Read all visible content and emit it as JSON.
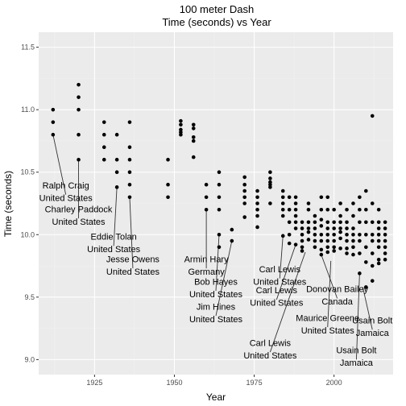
{
  "chart_data": {
    "type": "scatter",
    "title": "100 meter Dash",
    "subtitle": "Time (seconds) vs Year",
    "xlabel": "Year",
    "ylabel": "Time (seconds)",
    "xlim": [
      1907.5,
      2018.5
    ],
    "ylim": [
      8.88,
      11.62
    ],
    "xticks": [
      1925,
      1950,
      1975,
      2000
    ],
    "xtick_labels": [
      "1925",
      "1950",
      "1975",
      "2000"
    ],
    "yticks": [
      9.0,
      9.5,
      10.0,
      10.5,
      11.0,
      11.5
    ],
    "ytick_labels": [
      "9.0",
      "9.5",
      "10.0",
      "10.5",
      "11.0",
      "11.5"
    ],
    "grid": true,
    "points": [
      [
        1912,
        11.0
      ],
      [
        1912,
        10.9
      ],
      [
        1912,
        10.8
      ],
      [
        1920,
        11.2
      ],
      [
        1920,
        11.1
      ],
      [
        1920,
        11.0
      ],
      [
        1920,
        10.8
      ],
      [
        1920,
        10.6
      ],
      [
        1928,
        10.9
      ],
      [
        1928,
        10.8
      ],
      [
        1928,
        10.7
      ],
      [
        1928,
        10.6
      ],
      [
        1932,
        10.8
      ],
      [
        1932,
        10.6
      ],
      [
        1932,
        10.5
      ],
      [
        1932,
        10.38
      ],
      [
        1936,
        10.9
      ],
      [
        1936,
        10.7
      ],
      [
        1936,
        10.6
      ],
      [
        1936,
        10.5
      ],
      [
        1936,
        10.4
      ],
      [
        1936,
        10.3
      ],
      [
        1948,
        10.6
      ],
      [
        1948,
        10.4
      ],
      [
        1948,
        10.3
      ],
      [
        1952,
        10.91
      ],
      [
        1952,
        10.88
      ],
      [
        1952,
        10.84
      ],
      [
        1952,
        10.82
      ],
      [
        1952,
        10.8
      ],
      [
        1956,
        10.88
      ],
      [
        1956,
        10.85
      ],
      [
        1956,
        10.78
      ],
      [
        1956,
        10.75
      ],
      [
        1956,
        10.62
      ],
      [
        1960,
        10.4
      ],
      [
        1960,
        10.3
      ],
      [
        1960,
        10.2
      ],
      [
        1964,
        10.5
      ],
      [
        1964,
        10.4
      ],
      [
        1964,
        10.3
      ],
      [
        1964,
        10.2
      ],
      [
        1964,
        10.0
      ],
      [
        1964,
        9.9
      ],
      [
        1968,
        10.04
      ],
      [
        1968,
        9.95
      ],
      [
        1972,
        10.46
      ],
      [
        1972,
        10.4
      ],
      [
        1972,
        10.35
      ],
      [
        1972,
        10.3
      ],
      [
        1972,
        10.25
      ],
      [
        1972,
        10.14
      ],
      [
        1976,
        10.35
      ],
      [
        1976,
        10.3
      ],
      [
        1976,
        10.25
      ],
      [
        1976,
        10.2
      ],
      [
        1976,
        10.15
      ],
      [
        1976,
        10.06
      ],
      [
        1980,
        10.5
      ],
      [
        1980,
        10.45
      ],
      [
        1980,
        10.42
      ],
      [
        1980,
        10.4
      ],
      [
        1980,
        10.38
      ],
      [
        1980,
        10.25
      ],
      [
        1984,
        10.35
      ],
      [
        1984,
        10.3
      ],
      [
        1984,
        10.25
      ],
      [
        1984,
        10.2
      ],
      [
        1984,
        10.15
      ],
      [
        1984,
        9.99
      ],
      [
        1986,
        10.3
      ],
      [
        1986,
        10.2
      ],
      [
        1986,
        10.1
      ],
      [
        1986,
        10.0
      ],
      [
        1986,
        9.93
      ],
      [
        1988,
        10.3
      ],
      [
        1988,
        10.25
      ],
      [
        1988,
        10.2
      ],
      [
        1988,
        10.15
      ],
      [
        1988,
        10.1
      ],
      [
        1988,
        10.05
      ],
      [
        1988,
        9.92
      ],
      [
        1990,
        10.1
      ],
      [
        1990,
        10.05
      ],
      [
        1990,
        10.0
      ],
      [
        1990,
        9.95
      ],
      [
        1990,
        9.9
      ],
      [
        1990,
        9.87
      ],
      [
        1992,
        10.25
      ],
      [
        1992,
        10.2
      ],
      [
        1992,
        10.1
      ],
      [
        1992,
        10.05
      ],
      [
        1992,
        10.02
      ],
      [
        1992,
        9.96
      ],
      [
        1994,
        10.15
      ],
      [
        1994,
        10.1
      ],
      [
        1994,
        10.05
      ],
      [
        1994,
        10.0
      ],
      [
        1994,
        9.95
      ],
      [
        1994,
        9.9
      ],
      [
        1996,
        10.3
      ],
      [
        1996,
        10.2
      ],
      [
        1996,
        10.12
      ],
      [
        1996,
        10.07
      ],
      [
        1996,
        10.0
      ],
      [
        1996,
        9.95
      ],
      [
        1996,
        9.88
      ],
      [
        1996,
        9.84
      ],
      [
        1998,
        10.3
      ],
      [
        1998,
        10.2
      ],
      [
        1998,
        10.1
      ],
      [
        1998,
        10.05
      ],
      [
        1998,
        10.0
      ],
      [
        1998,
        9.95
      ],
      [
        1998,
        9.9
      ],
      [
        1998,
        9.86
      ],
      [
        2000,
        10.2
      ],
      [
        2000,
        10.1
      ],
      [
        2000,
        10.05
      ],
      [
        2000,
        10.0
      ],
      [
        2000,
        9.95
      ],
      [
        2000,
        9.9
      ],
      [
        2000,
        9.87
      ],
      [
        2002,
        10.25
      ],
      [
        2002,
        10.15
      ],
      [
        2002,
        10.1
      ],
      [
        2002,
        10.05
      ],
      [
        2002,
        10.02
      ],
      [
        2002,
        9.97
      ],
      [
        2002,
        9.89
      ],
      [
        2004,
        10.2
      ],
      [
        2004,
        10.1
      ],
      [
        2004,
        10.05
      ],
      [
        2004,
        10.0
      ],
      [
        2004,
        9.95
      ],
      [
        2004,
        9.89
      ],
      [
        2004,
        9.85
      ],
      [
        2006,
        10.25
      ],
      [
        2006,
        10.15
      ],
      [
        2006,
        10.05
      ],
      [
        2006,
        10.0
      ],
      [
        2006,
        9.95
      ],
      [
        2006,
        9.9
      ],
      [
        2006,
        9.84
      ],
      [
        2008,
        10.3
      ],
      [
        2008,
        10.2
      ],
      [
        2008,
        10.1
      ],
      [
        2008,
        10.0
      ],
      [
        2008,
        9.95
      ],
      [
        2008,
        9.85
      ],
      [
        2008,
        9.69
      ],
      [
        2010,
        10.35
      ],
      [
        2010,
        10.2
      ],
      [
        2010,
        10.1
      ],
      [
        2010,
        10.0
      ],
      [
        2010,
        9.9
      ],
      [
        2010,
        9.78
      ],
      [
        2010,
        9.58
      ],
      [
        2012,
        10.95
      ],
      [
        2012,
        10.25
      ],
      [
        2012,
        10.1
      ],
      [
        2012,
        10.0
      ],
      [
        2012,
        9.95
      ],
      [
        2012,
        9.85
      ],
      [
        2012,
        9.75
      ],
      [
        2012,
        9.63
      ],
      [
        2014,
        10.2
      ],
      [
        2014,
        10.1
      ],
      [
        2014,
        10.05
      ],
      [
        2014,
        10.0
      ],
      [
        2014,
        9.95
      ],
      [
        2014,
        9.9
      ],
      [
        2014,
        9.8
      ],
      [
        2014,
        9.77
      ],
      [
        2016,
        10.1
      ],
      [
        2016,
        10.05
      ],
      [
        2016,
        10.0
      ],
      [
        2016,
        9.95
      ],
      [
        2016,
        9.9
      ],
      [
        2016,
        9.85
      ],
      [
        2016,
        9.8
      ]
    ],
    "annotations": [
      {
        "name": "Ralph Craig",
        "country": "United States",
        "point": [
          1912,
          10.8
        ],
        "label_x": 1916,
        "label_y": 10.37
      },
      {
        "name": "Charley Paddock",
        "country": "United States",
        "point": [
          1920,
          10.6
        ],
        "label_x": 1920,
        "label_y": 10.18
      },
      {
        "name": "Eddie Tolan",
        "country": "United States",
        "point": [
          1932,
          10.38
        ],
        "label_x": 1931,
        "label_y": 9.96
      },
      {
        "name": "Jesse Owens",
        "country": "United States",
        "point": [
          1936,
          10.3
        ],
        "label_x": 1937,
        "label_y": 9.78
      },
      {
        "name": "Armin Hary",
        "country": "Germany",
        "point": [
          1960,
          10.2
        ],
        "label_x": 1960,
        "label_y": 9.78
      },
      {
        "name": "Bob Hayes",
        "country": "United States",
        "point": [
          1964,
          10.0
        ],
        "label_x": 1963,
        "label_y": 9.6
      },
      {
        "name": "Jim Hines",
        "country": "United States",
        "point": [
          1968,
          9.95
        ],
        "label_x": 1963,
        "label_y": 9.4
      },
      {
        "name": "Carl Lewis",
        "country": "United States",
        "point": [
          1984,
          9.99
        ],
        "label_x": 1983,
        "label_y": 9.7
      },
      {
        "name": "Carl Lewis",
        "country": "United States",
        "point": [
          1988,
          9.92
        ],
        "label_x": 1982,
        "label_y": 9.53
      },
      {
        "name": "Carl Lewis",
        "country": "United States",
        "point": [
          1991,
          9.86
        ],
        "label_x": 1980,
        "label_y": 9.11
      },
      {
        "name": "Donovan Bailey",
        "country": "Canada",
        "point": [
          1996,
          9.84
        ],
        "label_x": 2001,
        "label_y": 9.54
      },
      {
        "name": "Maurice Greene",
        "country": "United States",
        "point": [
          1999,
          9.79
        ],
        "label_x": 1998,
        "label_y": 9.31
      },
      {
        "name": "Usain Bolt",
        "country": "Jamaica",
        "point": [
          2009,
          9.58
        ],
        "label_x": 2012,
        "label_y": 9.29
      },
      {
        "name": "Usain Bolt",
        "country": "Jamaica",
        "point": [
          2008,
          9.69
        ],
        "label_x": 2007,
        "label_y": 9.05
      }
    ]
  }
}
